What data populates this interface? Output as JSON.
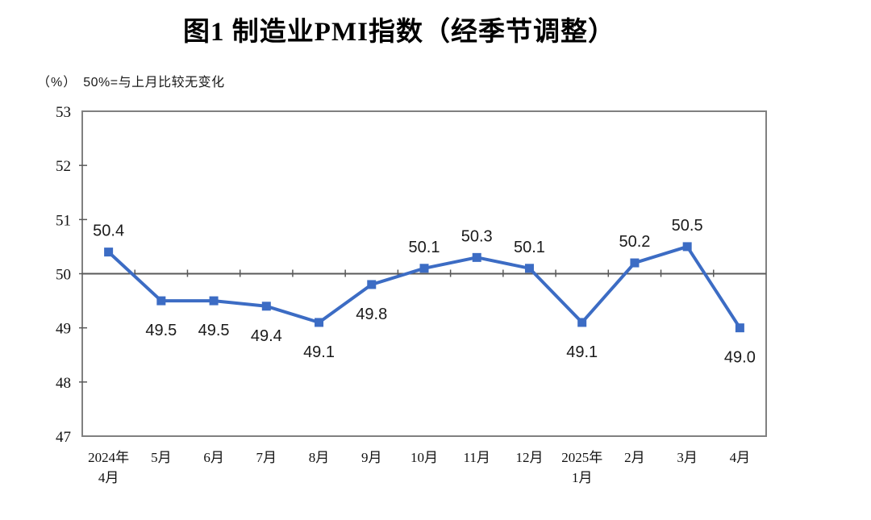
{
  "chart_data": {
    "type": "line",
    "title": "图1  制造业PMI指数（经季节调整）",
    "unit": "（%）",
    "subtitle": "50%=与上月比较无变化",
    "categories": [
      [
        "2024年",
        "4月"
      ],
      [
        "5月"
      ],
      [
        "6月"
      ],
      [
        "7月"
      ],
      [
        "8月"
      ],
      [
        "9月"
      ],
      [
        "10月"
      ],
      [
        "11月"
      ],
      [
        "12月"
      ],
      [
        "2025年",
        "1月"
      ],
      [
        "2月"
      ],
      [
        "3月"
      ],
      [
        "4月"
      ]
    ],
    "values": [
      50.4,
      49.5,
      49.5,
      49.4,
      49.1,
      49.8,
      50.1,
      50.3,
      50.1,
      49.1,
      50.2,
      50.5,
      49.0
    ],
    "data_labels": [
      "50.4",
      "49.5",
      "49.5",
      "49.4",
      "49.1",
      "49.8",
      "50.1",
      "50.3",
      "50.1",
      "49.1",
      "50.2",
      "50.5",
      "49.0"
    ],
    "label_positions": [
      "above",
      "below",
      "below",
      "below",
      "below",
      "below",
      "above",
      "above",
      "above",
      "below",
      "above",
      "above",
      "below"
    ],
    "ylim": [
      47,
      53
    ],
    "yticks": [
      47,
      48,
      49,
      50,
      51,
      52,
      53
    ],
    "reference_line": 50,
    "marker": "square",
    "grid": false,
    "legend": "none",
    "colors": {
      "line": "#3C6CC4",
      "plot_border": "#808080",
      "reference_line": "#595959",
      "text": "#1a1a1a"
    }
  }
}
